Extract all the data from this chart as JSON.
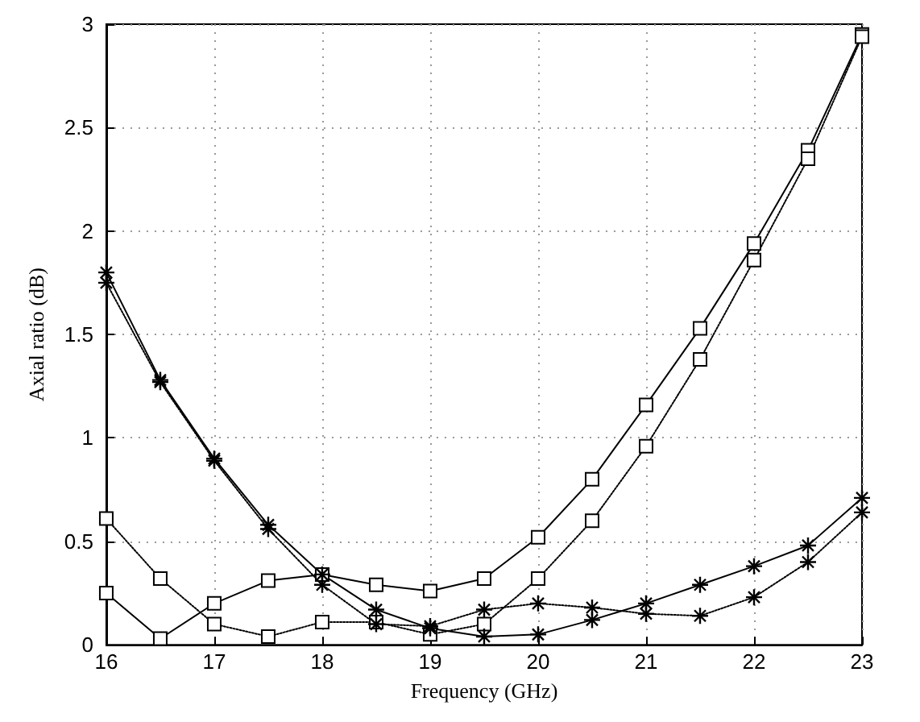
{
  "chart_data": {
    "type": "line",
    "xlabel": "Frequency (GHz)",
    "ylabel": "Axial ratio (dB)",
    "x": [
      16,
      16.5,
      17,
      17.5,
      18,
      18.5,
      19,
      19.5,
      20,
      20.5,
      21,
      21.5,
      22,
      22.5,
      23
    ],
    "xlim": [
      16,
      23
    ],
    "xticks": [
      16,
      17,
      18,
      19,
      20,
      21,
      22,
      23
    ],
    "ylim": [
      0,
      3
    ],
    "yticks": [
      0,
      0.5,
      1,
      1.5,
      2,
      2.5,
      3
    ],
    "grid": true,
    "series": [
      {
        "color": "#000000",
        "marker": "square",
        "line_style": "solid",
        "values": [
          0.25,
          0.03,
          0.2,
          0.31,
          0.34,
          0.29,
          0.26,
          0.32,
          0.52,
          0.8,
          1.16,
          1.53,
          1.94,
          2.39,
          2.95
        ]
      },
      {
        "color": "#000000",
        "marker": "square",
        "line_style": "dotted",
        "values": [
          0.61,
          0.32,
          0.1,
          0.04,
          0.11,
          0.11,
          0.05,
          0.1,
          0.32,
          0.6,
          0.96,
          1.38,
          1.86,
          2.35,
          2.94
        ]
      },
      {
        "color": "#000000",
        "marker": "cross",
        "line_style": "solid",
        "values": [
          1.8,
          1.28,
          0.9,
          0.58,
          0.34,
          0.17,
          0.08,
          0.04,
          0.05,
          0.12,
          0.2,
          0.29,
          0.38,
          0.48,
          0.71
        ]
      },
      {
        "color": "#000000",
        "marker": "cross",
        "line_style": "dotted",
        "values": [
          1.75,
          1.27,
          0.89,
          0.56,
          0.29,
          0.1,
          0.09,
          0.17,
          0.2,
          0.18,
          0.15,
          0.14,
          0.23,
          0.4,
          0.64
        ]
      }
    ]
  }
}
